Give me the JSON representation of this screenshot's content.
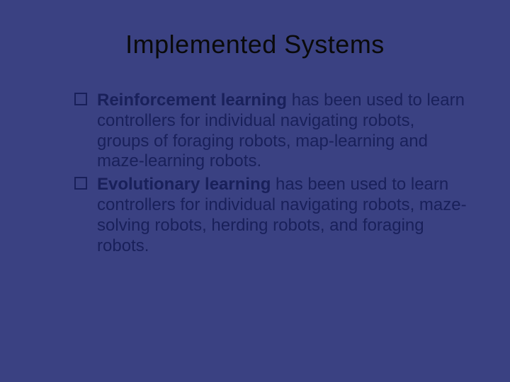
{
  "slide": {
    "title": "Implemented Systems",
    "background_color": "#3a4182",
    "title_color": "#0a0a0a",
    "text_color": "#19205a",
    "title_fontsize": 36,
    "body_fontsize": 24,
    "bullets": [
      {
        "bold_lead": "Reinforcement learning",
        "rest": " has been used to learn controllers for individual navigating robots, groups of foraging robots, map-learning and maze-learning robots."
      },
      {
        "bold_lead": "Evolutionary learning",
        "rest": " has been used to learn controllers for individual navigating robots, maze-solving robots, herding robots, and foraging robots."
      }
    ]
  }
}
